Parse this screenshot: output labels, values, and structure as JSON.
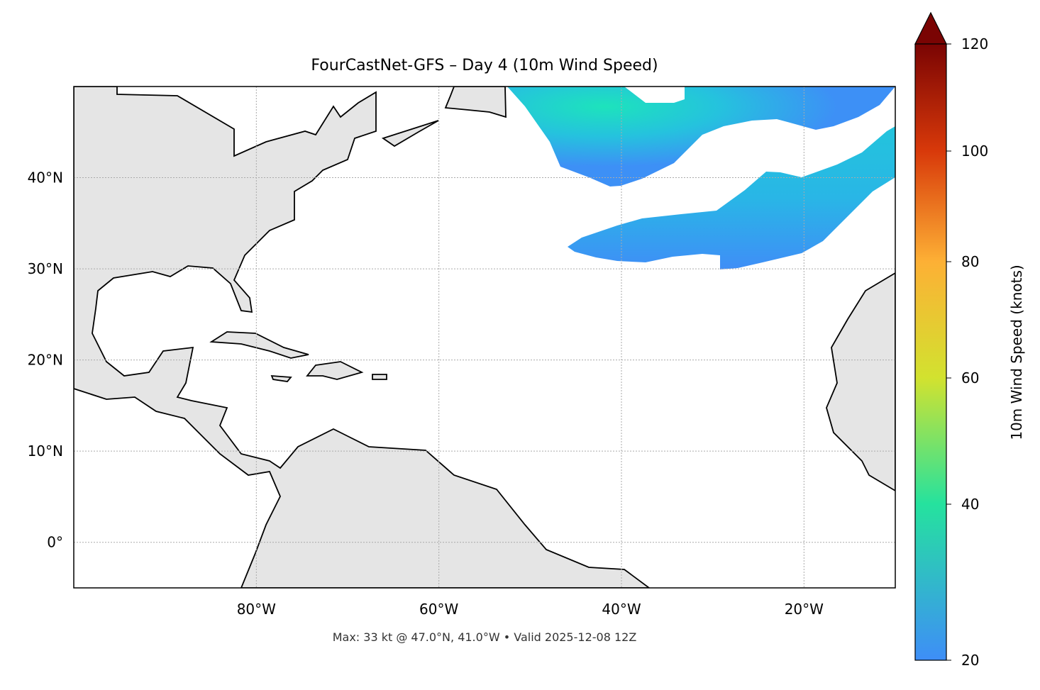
{
  "chart_data": {
    "type": "heatmap",
    "title": "FourCastNet-GFS – Day 4 (10m Wind Speed)",
    "footer": "Max: 33 kt @ 47.0°N, 41.0°W • Valid 2025-12-08 12Z",
    "map_extent": {
      "lon": [
        -100,
        -10
      ],
      "lat": [
        -5,
        50
      ]
    },
    "x_ticks": [
      {
        "value": -80,
        "label": "80°W"
      },
      {
        "value": -60,
        "label": "60°W"
      },
      {
        "value": -40,
        "label": "40°W"
      },
      {
        "value": -20,
        "label": "20°W"
      }
    ],
    "y_ticks": [
      {
        "value": 40,
        "label": "40°N"
      },
      {
        "value": 30,
        "label": "30°N"
      },
      {
        "value": 20,
        "label": "20°N"
      },
      {
        "value": 10,
        "label": "10°N"
      },
      {
        "value": 0,
        "label": "0°"
      }
    ],
    "grid": true,
    "colorbar": {
      "label": "10m Wind Speed (knots)",
      "range": [
        20,
        120
      ],
      "extend": "max",
      "ticks": [
        {
          "value": 20,
          "label": "20"
        },
        {
          "value": 40,
          "label": "40"
        },
        {
          "value": 60,
          "label": "60"
        },
        {
          "value": 80,
          "label": "80"
        },
        {
          "value": 100,
          "label": "100"
        },
        {
          "value": 120,
          "label": "120"
        }
      ],
      "colors": {
        "20": "#3e8ef7",
        "40": "#25e29e",
        "60": "#d2e22f",
        "80": "#fdb035",
        "100": "#d8390a",
        "120": "#7a0403"
      }
    },
    "land_color": "#e5e5e5",
    "max_point": {
      "speed_kt": 33,
      "lat": 47.0,
      "lon": -41.0
    }
  }
}
